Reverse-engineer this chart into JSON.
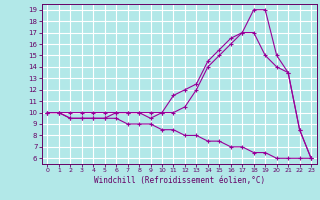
{
  "xlabel": "Windchill (Refroidissement éolien,°C)",
  "bg_color": "#b2e8e8",
  "grid_color": "#ffffff",
  "line_color": "#990099",
  "xlim": [
    -0.5,
    23.5
  ],
  "ylim": [
    5.5,
    19.5
  ],
  "xticks": [
    0,
    1,
    2,
    3,
    4,
    5,
    6,
    7,
    8,
    9,
    10,
    11,
    12,
    13,
    14,
    15,
    16,
    17,
    18,
    19,
    20,
    21,
    22,
    23
  ],
  "yticks": [
    6,
    7,
    8,
    9,
    10,
    11,
    12,
    13,
    14,
    15,
    16,
    17,
    18,
    19
  ],
  "line1_x": [
    0,
    1,
    2,
    3,
    4,
    5,
    6,
    7,
    8,
    9,
    10,
    11,
    12,
    13,
    14,
    15,
    16,
    17,
    18,
    19,
    20,
    21,
    22,
    23
  ],
  "line1_y": [
    10,
    10,
    10,
    10,
    10,
    10,
    10,
    10,
    10,
    10,
    10,
    11.5,
    12,
    12.5,
    14.5,
    15.5,
    16.5,
    17,
    19,
    19,
    15,
    13.5,
    8.5,
    6
  ],
  "line2_x": [
    0,
    1,
    2,
    3,
    4,
    5,
    6,
    7,
    8,
    9,
    10,
    11,
    12,
    13,
    14,
    15,
    16,
    17,
    18,
    19,
    20,
    21,
    22,
    23
  ],
  "line2_y": [
    10,
    10,
    9.5,
    9.5,
    9.5,
    9.5,
    10,
    10,
    10,
    9.5,
    10,
    10,
    10.5,
    12,
    14,
    15,
    16,
    17,
    17,
    15,
    14,
    13.5,
    8.5,
    6
  ],
  "line3_x": [
    0,
    1,
    2,
    3,
    4,
    5,
    6,
    7,
    8,
    9,
    10,
    11,
    12,
    13,
    14,
    15,
    16,
    17,
    18,
    19,
    20,
    21,
    22,
    23
  ],
  "line3_y": [
    10,
    10,
    9.5,
    9.5,
    9.5,
    9.5,
    9.5,
    9,
    9,
    9,
    8.5,
    8.5,
    8,
    8,
    7.5,
    7.5,
    7,
    7,
    6.5,
    6.5,
    6,
    6,
    6,
    6
  ],
  "tick_fontsize": 5,
  "xlabel_fontsize": 5.5,
  "tick_color": "#660066",
  "spine_color": "#660066"
}
